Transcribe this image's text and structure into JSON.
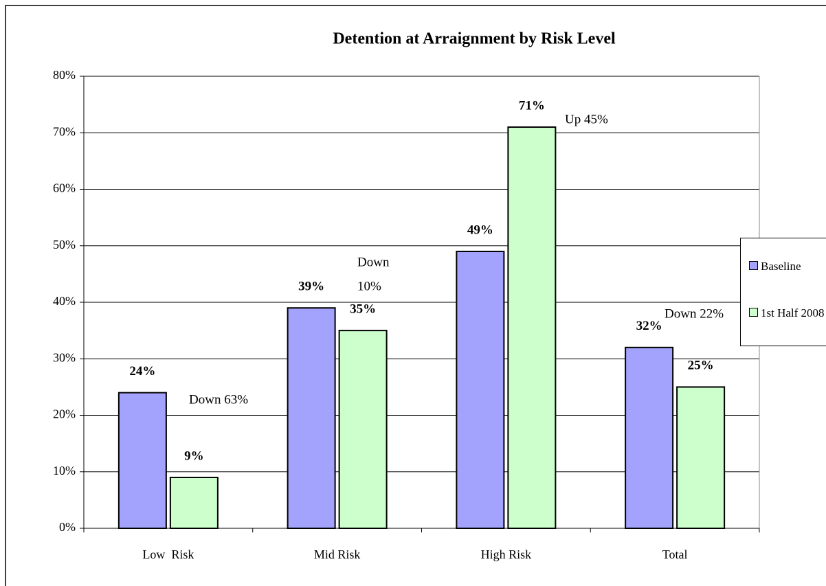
{
  "chart_data": {
    "type": "bar",
    "title": "Detention at Arraignment by Risk Level",
    "categories": [
      "Low  Risk",
      "Mid Risk",
      "High Risk",
      "Total"
    ],
    "series": [
      {
        "name": "Baseline",
        "color": "#a3a3fe",
        "values": [
          24,
          39,
          49,
          32
        ],
        "value_labels": [
          "24%",
          "39%",
          "49%",
          "32%"
        ]
      },
      {
        "name": "1st Half 2008",
        "color": "#ccffcc",
        "values": [
          9,
          35,
          71,
          25
        ],
        "value_labels": [
          "9%",
          "35%",
          "71%",
          "25%"
        ]
      }
    ],
    "annotations": [
      [
        "Down 63%"
      ],
      [
        "Down",
        "10%"
      ],
      [
        "Up 45%"
      ],
      [
        "Down 22%"
      ]
    ],
    "ylim": [
      0,
      80
    ],
    "yticks": [
      {
        "value": 0,
        "label": "0%"
      },
      {
        "value": 10,
        "label": "10%"
      },
      {
        "value": 20,
        "label": "20%"
      },
      {
        "value": 30,
        "label": "30%"
      },
      {
        "value": 40,
        "label": "40%"
      },
      {
        "value": 50,
        "label": "50%"
      },
      {
        "value": 60,
        "label": "60%"
      },
      {
        "value": 70,
        "label": "70%"
      },
      {
        "value": 80,
        "label": "80%"
      }
    ],
    "grid": true,
    "legend": "right"
  }
}
